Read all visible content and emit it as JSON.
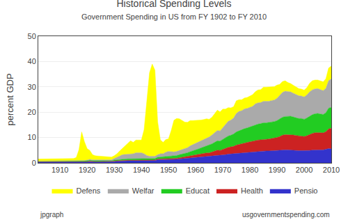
{
  "chart_data": {
    "type": "area",
    "title": "Historical Spending Levels",
    "subtitle": "Government Spending in US from FY 1902 to FY 2010",
    "ylabel": "percent GDP",
    "annotations": [
      "jpgraph",
      "usgovernmentspending.com"
    ],
    "stacked": true,
    "grid": "y",
    "legend": "bottom",
    "xlim": [
      1902,
      2010
    ],
    "xticks": [
      1910,
      1920,
      1930,
      1940,
      1950,
      1960,
      1970,
      1980,
      1990,
      2000,
      2010
    ],
    "ylim": [
      0,
      50
    ],
    "yticks": [
      0,
      10,
      20,
      30,
      40,
      50
    ],
    "x": [
      1902,
      1903,
      1904,
      1905,
      1906,
      1907,
      1908,
      1909,
      1910,
      1911,
      1912,
      1913,
      1914,
      1915,
      1916,
      1917,
      1918,
      1919,
      1920,
      1921,
      1922,
      1923,
      1924,
      1925,
      1926,
      1927,
      1928,
      1929,
      1930,
      1931,
      1932,
      1933,
      1934,
      1935,
      1936,
      1937,
      1938,
      1939,
      1940,
      1941,
      1942,
      1943,
      1944,
      1945,
      1946,
      1947,
      1948,
      1949,
      1950,
      1951,
      1952,
      1953,
      1954,
      1955,
      1956,
      1957,
      1958,
      1959,
      1960,
      1961,
      1962,
      1963,
      1964,
      1965,
      1966,
      1967,
      1968,
      1969,
      1970,
      1971,
      1972,
      1973,
      1974,
      1975,
      1976,
      1977,
      1978,
      1979,
      1980,
      1981,
      1982,
      1983,
      1984,
      1985,
      1986,
      1987,
      1988,
      1989,
      1990,
      1991,
      1992,
      1993,
      1994,
      1995,
      1996,
      1997,
      1998,
      1999,
      2000,
      2001,
      2002,
      2003,
      2004,
      2005,
      2006,
      2007,
      2008,
      2009,
      2010
    ],
    "series": [
      {
        "name": "Pensio",
        "color": "#3333cc",
        "values": [
          0.3,
          0.3,
          0.3,
          0.3,
          0.3,
          0.3,
          0.3,
          0.3,
          0.3,
          0.3,
          0.3,
          0.3,
          0.3,
          0.3,
          0.3,
          0.3,
          0.3,
          0.4,
          0.4,
          0.5,
          0.4,
          0.4,
          0.4,
          0.4,
          0.4,
          0.4,
          0.4,
          0.4,
          0.5,
          0.6,
          0.7,
          0.7,
          0.8,
          0.8,
          0.8,
          0.8,
          0.9,
          0.9,
          0.9,
          0.9,
          0.8,
          0.8,
          0.8,
          0.9,
          1.2,
          1.2,
          1.2,
          1.3,
          1.3,
          1.3,
          1.3,
          1.4,
          1.5,
          1.6,
          1.7,
          1.8,
          1.9,
          2.0,
          2.1,
          2.2,
          2.3,
          2.4,
          2.5,
          2.5,
          2.7,
          2.8,
          3.0,
          2.9,
          3.1,
          3.2,
          3.4,
          3.5,
          3.6,
          3.8,
          3.9,
          4.0,
          4.1,
          4.2,
          4.3,
          4.4,
          4.5,
          4.6,
          4.6,
          4.7,
          4.7,
          4.7,
          4.8,
          4.8,
          4.9,
          5.0,
          5.1,
          5.1,
          5.1,
          5.1,
          5.0,
          4.9,
          4.8,
          4.8,
          4.7,
          4.8,
          4.9,
          5.0,
          5.1,
          5.1,
          5.1,
          5.1,
          5.3,
          5.6,
          5.5
        ]
      },
      {
        "name": "Health",
        "color": "#cc2222",
        "values": [
          0.1,
          0.1,
          0.1,
          0.1,
          0.1,
          0.1,
          0.1,
          0.1,
          0.1,
          0.1,
          0.1,
          0.1,
          0.1,
          0.1,
          0.1,
          0.1,
          0.1,
          0.1,
          0.1,
          0.2,
          0.1,
          0.1,
          0.1,
          0.1,
          0.1,
          0.1,
          0.1,
          0.1,
          0.2,
          0.2,
          0.2,
          0.2,
          0.2,
          0.2,
          0.2,
          0.2,
          0.2,
          0.2,
          0.2,
          0.2,
          0.2,
          0.2,
          0.2,
          0.2,
          0.3,
          0.3,
          0.3,
          0.4,
          0.4,
          0.4,
          0.4,
          0.4,
          0.5,
          0.5,
          0.6,
          0.7,
          0.8,
          0.9,
          1.0,
          1.1,
          1.2,
          1.3,
          1.4,
          1.4,
          1.6,
          1.8,
          2.0,
          2.0,
          2.3,
          2.5,
          2.7,
          2.7,
          2.9,
          3.2,
          3.4,
          3.5,
          3.7,
          3.8,
          4.0,
          4.1,
          4.3,
          4.4,
          4.5,
          4.6,
          4.6,
          4.7,
          4.8,
          4.9,
          5.1,
          5.4,
          5.8,
          6.0,
          6.0,
          6.1,
          6.0,
          5.9,
          5.8,
          5.8,
          5.7,
          5.9,
          6.3,
          6.6,
          6.8,
          6.9,
          6.8,
          6.7,
          7.0,
          7.8,
          8.2
        ]
      },
      {
        "name": "Educat",
        "color": "#22cc22",
        "values": [
          0.2,
          0.2,
          0.2,
          0.2,
          0.2,
          0.2,
          0.2,
          0.2,
          0.2,
          0.2,
          0.2,
          0.2,
          0.2,
          0.2,
          0.2,
          0.2,
          0.2,
          0.2,
          0.3,
          0.3,
          0.3,
          0.3,
          0.3,
          0.3,
          0.3,
          0.3,
          0.3,
          0.3,
          0.4,
          0.4,
          0.5,
          0.5,
          0.5,
          0.6,
          0.6,
          0.6,
          0.6,
          0.7,
          0.7,
          0.7,
          0.6,
          0.6,
          0.6,
          0.6,
          0.7,
          0.8,
          0.8,
          0.9,
          1.0,
          1.0,
          1.0,
          1.1,
          1.2,
          1.3,
          1.4,
          1.5,
          1.7,
          1.8,
          2.0,
          2.2,
          2.4,
          2.6,
          2.8,
          3.0,
          3.2,
          3.5,
          3.7,
          3.7,
          3.9,
          4.2,
          4.5,
          4.7,
          4.9,
          5.2,
          5.4,
          5.5,
          5.7,
          5.8,
          5.9,
          6.0,
          6.2,
          6.3,
          6.4,
          6.5,
          6.5,
          6.5,
          6.5,
          6.6,
          6.7,
          6.9,
          7.1,
          7.2,
          7.2,
          7.2,
          7.1,
          7.0,
          6.9,
          6.9,
          6.8,
          7.0,
          7.2,
          7.4,
          7.5,
          7.5,
          7.4,
          7.3,
          7.5,
          8.2,
          8.2
        ]
      },
      {
        "name": "Welfar",
        "color": "#aaaaaa",
        "values": [
          0.1,
          0.1,
          0.1,
          0.1,
          0.1,
          0.1,
          0.1,
          0.1,
          0.1,
          0.1,
          0.1,
          0.1,
          0.1,
          0.1,
          0.1,
          0.1,
          0.1,
          0.2,
          0.3,
          0.4,
          0.4,
          0.4,
          0.4,
          0.4,
          0.4,
          0.4,
          0.4,
          0.4,
          0.6,
          0.9,
          1.3,
          1.8,
          1.8,
          2.0,
          2.1,
          2.0,
          2.3,
          2.2,
          2.2,
          1.8,
          1.3,
          1.0,
          0.9,
          0.9,
          1.0,
          1.3,
          1.3,
          1.6,
          1.8,
          1.6,
          1.6,
          1.6,
          1.7,
          1.8,
          1.9,
          2.0,
          2.3,
          2.5,
          2.6,
          2.8,
          3.0,
          3.1,
          3.2,
          3.3,
          3.5,
          3.8,
          4.1,
          4.0,
          4.6,
          5.3,
          5.8,
          6.0,
          6.3,
          7.3,
          7.6,
          7.6,
          7.8,
          7.7,
          7.8,
          7.8,
          8.3,
          8.4,
          8.3,
          8.5,
          8.5,
          8.4,
          8.5,
          8.5,
          8.8,
          9.3,
          9.8,
          10.0,
          9.8,
          9.6,
          9.4,
          9.2,
          9.0,
          8.9,
          8.8,
          9.1,
          9.6,
          9.8,
          9.8,
          9.8,
          9.6,
          9.4,
          9.6,
          10.8,
          11.3
        ]
      },
      {
        "name": "Defens",
        "color": "#ffff00",
        "values": [
          0.8,
          0.8,
          0.8,
          0.8,
          0.8,
          0.8,
          0.9,
          0.9,
          0.9,
          0.9,
          0.9,
          0.9,
          0.9,
          1.0,
          1.4,
          4.5,
          11.5,
          7.5,
          4.5,
          3.5,
          2.0,
          1.6,
          1.5,
          1.4,
          1.3,
          1.2,
          1.2,
          1.1,
          1.1,
          1.5,
          2.0,
          2.5,
          3.5,
          4.0,
          5.0,
          4.5,
          5.0,
          5.0,
          5.0,
          9.5,
          21.0,
          33.0,
          36.5,
          34.0,
          13.0,
          5.5,
          4.5,
          5.0,
          5.0,
          8.5,
          12.5,
          13.0,
          12.5,
          11.5,
          10.5,
          10.0,
          10.0,
          9.5,
          9.0,
          8.5,
          8.0,
          7.7,
          7.5,
          7.0,
          7.0,
          7.5,
          8.0,
          7.5,
          7.3,
          6.0,
          5.4,
          4.8,
          4.5,
          5.0,
          4.6,
          4.3,
          4.3,
          4.3,
          4.4,
          4.6,
          4.8,
          5.1,
          5.1,
          5.6,
          5.6,
          5.6,
          5.4,
          5.3,
          5.2,
          4.4,
          4.3,
          4.1,
          3.6,
          3.3,
          3.1,
          3.0,
          2.8,
          2.7,
          2.7,
          2.9,
          3.4,
          3.6,
          3.5,
          3.4,
          3.4,
          3.5,
          3.8,
          5.0,
          5.0
        ]
      }
    ]
  }
}
